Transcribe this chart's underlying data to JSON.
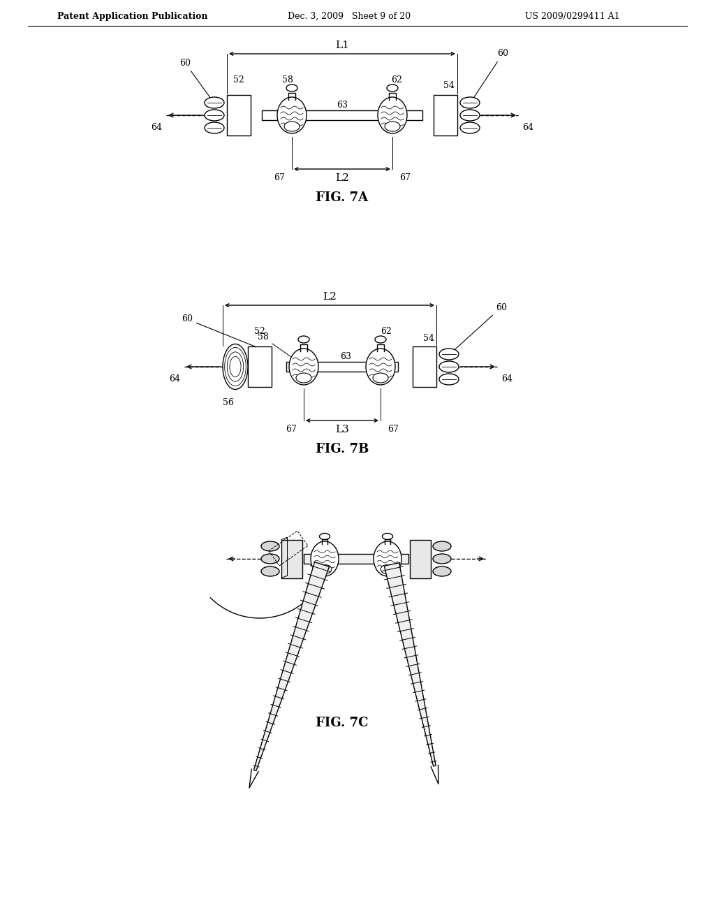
{
  "header_left": "Patent Application Publication",
  "header_mid": "Dec. 3, 2009   Sheet 9 of 20",
  "header_right": "US 2009/0299411 A1",
  "fig7a_label": "FIG. 7A",
  "fig7b_label": "FIG. 7B",
  "fig7c_label": "FIG. 7C",
  "bg_color": "#ffffff",
  "line_color": "#000000"
}
